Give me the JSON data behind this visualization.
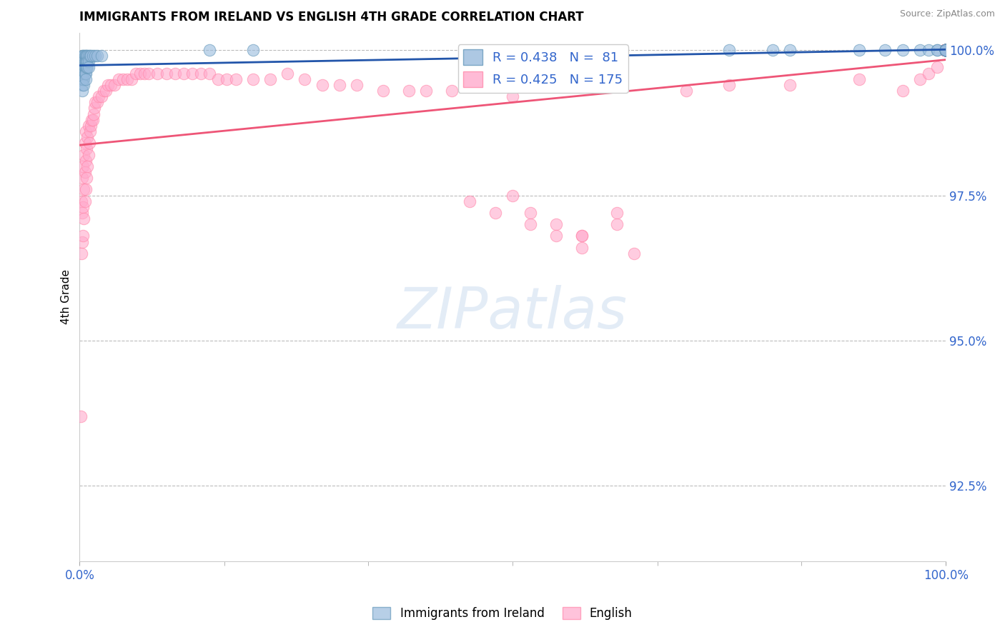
{
  "title": "IMMIGRANTS FROM IRELAND VS ENGLISH 4TH GRADE CORRELATION CHART",
  "source_text": "Source: ZipAtlas.com",
  "ylabel": "4th Grade",
  "xlim": [
    0.0,
    1.0
  ],
  "ylim": [
    0.912,
    1.003
  ],
  "ytick_vals": [
    0.925,
    0.95,
    0.975,
    1.0
  ],
  "ytick_labels": [
    "92.5%",
    "95.0%",
    "97.5%",
    "100.0%"
  ],
  "xtick_vals": [
    0.0,
    1.0
  ],
  "xtick_labels": [
    "0.0%",
    "100.0%"
  ],
  "blue_color": "#99BBDD",
  "pink_color": "#FFAACC",
  "blue_edge_color": "#6699BB",
  "pink_edge_color": "#FF88AA",
  "blue_line_color": "#2255AA",
  "pink_line_color": "#EE5577",
  "title_fontsize": 12,
  "axis_color": "#3366CC",
  "grid_color": "#BBBBBB",
  "watermark": "ZIPatlas",
  "legend_R_blue": "R = 0.438",
  "legend_N_blue": "N =  81",
  "legend_R_pink": "R = 0.425",
  "legend_N_pink": "N = 175",
  "bottom_legend_blue": "Immigrants from Ireland",
  "bottom_legend_pink": "English",
  "blue_scatter_x": [
    0.002,
    0.002,
    0.002,
    0.003,
    0.003,
    0.003,
    0.003,
    0.003,
    0.003,
    0.003,
    0.004,
    0.004,
    0.004,
    0.004,
    0.004,
    0.005,
    0.005,
    0.005,
    0.005,
    0.005,
    0.005,
    0.006,
    0.006,
    0.006,
    0.006,
    0.007,
    0.007,
    0.007,
    0.007,
    0.007,
    0.008,
    0.008,
    0.008,
    0.009,
    0.009,
    0.009,
    0.01,
    0.01,
    0.01,
    0.012,
    0.013,
    0.015,
    0.018,
    0.02,
    0.025,
    0.15,
    0.2,
    0.75,
    0.8,
    0.82,
    0.9,
    0.93,
    0.95,
    0.97,
    0.98,
    0.99,
    0.99,
    1.0,
    1.0,
    1.0,
    1.0,
    1.0,
    1.0,
    1.0,
    1.0,
    1.0,
    1.0,
    1.0,
    1.0,
    1.0,
    1.0,
    1.0,
    1.0,
    1.0,
    1.0,
    1.0,
    1.0,
    1.0,
    1.0,
    1.0,
    1.0
  ],
  "blue_scatter_y": [
    0.998,
    0.997,
    0.996,
    0.999,
    0.998,
    0.997,
    0.996,
    0.995,
    0.994,
    0.993,
    0.999,
    0.998,
    0.997,
    0.996,
    0.995,
    0.999,
    0.998,
    0.997,
    0.996,
    0.995,
    0.994,
    0.999,
    0.998,
    0.997,
    0.996,
    0.999,
    0.998,
    0.997,
    0.996,
    0.995,
    0.999,
    0.998,
    0.997,
    0.999,
    0.998,
    0.997,
    0.999,
    0.998,
    0.997,
    0.999,
    0.999,
    0.999,
    0.999,
    0.999,
    0.999,
    1.0,
    1.0,
    1.0,
    1.0,
    1.0,
    1.0,
    1.0,
    1.0,
    1.0,
    1.0,
    1.0,
    1.0,
    1.0,
    1.0,
    1.0,
    1.0,
    1.0,
    1.0,
    1.0,
    1.0,
    1.0,
    1.0,
    1.0,
    1.0,
    1.0,
    1.0,
    1.0,
    1.0,
    1.0,
    1.0,
    1.0,
    1.0,
    1.0,
    1.0,
    1.0,
    1.0
  ],
  "pink_scatter_x": [
    0.001,
    0.002,
    0.002,
    0.003,
    0.003,
    0.003,
    0.004,
    0.004,
    0.004,
    0.005,
    0.005,
    0.005,
    0.006,
    0.006,
    0.006,
    0.007,
    0.007,
    0.007,
    0.008,
    0.008,
    0.009,
    0.009,
    0.01,
    0.01,
    0.011,
    0.012,
    0.013,
    0.014,
    0.015,
    0.016,
    0.017,
    0.018,
    0.02,
    0.022,
    0.025,
    0.028,
    0.03,
    0.033,
    0.036,
    0.04,
    0.045,
    0.05,
    0.055,
    0.06,
    0.065,
    0.07,
    0.075,
    0.08,
    0.09,
    0.1,
    0.11,
    0.12,
    0.13,
    0.14,
    0.15,
    0.16,
    0.17,
    0.18,
    0.2,
    0.22,
    0.24,
    0.26,
    0.28,
    0.3,
    0.32,
    0.35,
    0.38,
    0.4,
    0.43,
    0.5,
    0.55,
    0.58,
    0.62,
    0.64,
    0.5,
    0.52,
    0.58,
    0.62,
    0.45,
    0.48,
    0.52,
    0.55,
    0.58,
    0.7,
    0.75,
    0.82,
    0.9,
    0.95,
    0.97,
    0.98,
    0.99,
    1.0,
    1.0,
    1.0,
    1.0,
    1.0,
    1.0,
    1.0,
    1.0,
    1.0,
    1.0,
    1.0,
    1.0,
    1.0,
    1.0,
    1.0,
    1.0,
    1.0,
    1.0,
    1.0,
    1.0,
    1.0,
    1.0,
    1.0,
    1.0,
    1.0,
    1.0,
    1.0,
    1.0,
    1.0,
    1.0,
    1.0,
    1.0,
    1.0,
    1.0,
    1.0,
    1.0,
    1.0,
    1.0,
    1.0,
    1.0,
    1.0,
    1.0,
    1.0,
    1.0,
    1.0,
    1.0,
    1.0,
    1.0,
    1.0,
    1.0,
    1.0,
    1.0,
    1.0,
    1.0,
    1.0,
    1.0,
    1.0,
    1.0,
    1.0,
    1.0,
    1.0,
    1.0,
    1.0,
    1.0,
    1.0,
    1.0,
    1.0,
    1.0,
    1.0,
    1.0,
    1.0,
    1.0,
    1.0,
    1.0,
    1.0,
    1.0,
    1.0,
    1.0,
    1.0,
    1.0
  ],
  "pink_scatter_y": [
    0.937,
    0.965,
    0.974,
    0.967,
    0.972,
    0.978,
    0.968,
    0.973,
    0.98,
    0.971,
    0.976,
    0.982,
    0.974,
    0.979,
    0.984,
    0.976,
    0.981,
    0.986,
    0.978,
    0.983,
    0.98,
    0.985,
    0.982,
    0.987,
    0.984,
    0.986,
    0.987,
    0.988,
    0.988,
    0.989,
    0.99,
    0.991,
    0.991,
    0.992,
    0.992,
    0.993,
    0.993,
    0.994,
    0.994,
    0.994,
    0.995,
    0.995,
    0.995,
    0.995,
    0.996,
    0.996,
    0.996,
    0.996,
    0.996,
    0.996,
    0.996,
    0.996,
    0.996,
    0.996,
    0.996,
    0.995,
    0.995,
    0.995,
    0.995,
    0.995,
    0.996,
    0.995,
    0.994,
    0.994,
    0.994,
    0.993,
    0.993,
    0.993,
    0.993,
    0.992,
    0.97,
    0.968,
    0.972,
    0.965,
    0.975,
    0.972,
    0.968,
    0.97,
    0.974,
    0.972,
    0.97,
    0.968,
    0.966,
    0.993,
    0.994,
    0.994,
    0.995,
    0.993,
    0.995,
    0.996,
    0.997,
    1.0,
    1.0,
    1.0,
    1.0,
    1.0,
    1.0,
    1.0,
    1.0,
    1.0,
    1.0,
    1.0,
    1.0,
    1.0,
    1.0,
    1.0,
    1.0,
    1.0,
    1.0,
    1.0,
    1.0,
    1.0,
    1.0,
    1.0,
    1.0,
    1.0,
    1.0,
    1.0,
    1.0,
    1.0,
    1.0,
    1.0,
    1.0,
    1.0,
    1.0,
    1.0,
    1.0,
    1.0,
    1.0,
    1.0,
    1.0,
    1.0,
    1.0,
    1.0,
    1.0,
    1.0,
    1.0,
    1.0,
    1.0,
    1.0,
    1.0,
    1.0,
    1.0,
    1.0,
    1.0,
    1.0,
    1.0,
    1.0,
    1.0,
    1.0,
    1.0,
    1.0,
    1.0,
    1.0,
    1.0,
    1.0,
    1.0,
    1.0,
    1.0,
    1.0,
    1.0,
    1.0,
    1.0,
    1.0,
    1.0,
    1.0,
    1.0,
    1.0,
    1.0,
    1.0,
    1.0
  ]
}
